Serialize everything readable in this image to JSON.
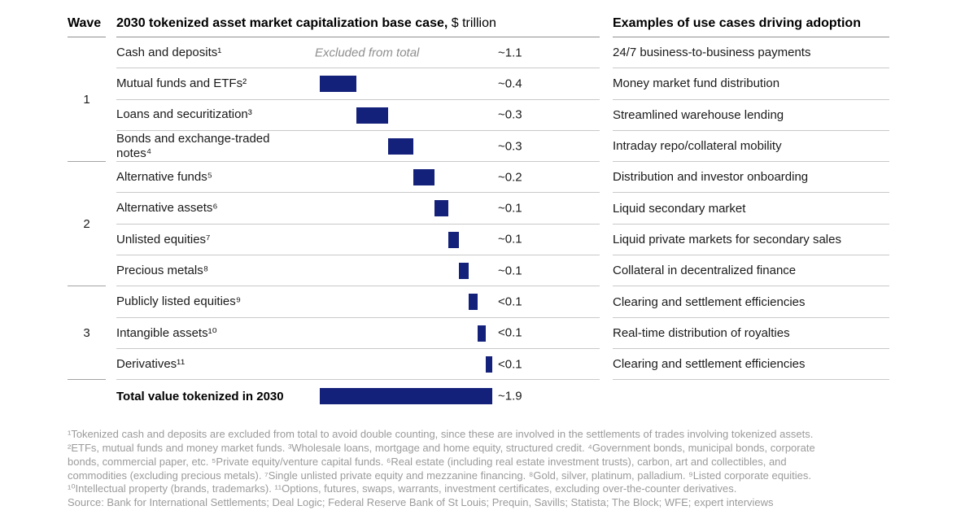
{
  "colors": {
    "bar_navy": "#14217a"
  },
  "wave": {
    "header": "Wave",
    "groups": [
      {
        "number": "1",
        "rows": 4
      },
      {
        "number": "2",
        "rows": 4
      },
      {
        "number": "3",
        "rows": 3
      }
    ]
  },
  "main": {
    "title_bold": "2030 tokenized asset market capitalization base case,",
    "title_unit": "$ trillion",
    "excluded_note": "Excluded from total",
    "rows": [
      {
        "label": "Cash and deposits¹",
        "value": "~1.1",
        "bar": null
      },
      {
        "label": "Mutual funds and ETFs²",
        "value": "~0.4",
        "bar": 0.4
      },
      {
        "label": "Loans and securitization³",
        "value": "~0.3",
        "bar": 0.35
      },
      {
        "label": "Bonds and exchange-traded notes⁴",
        "value": "~0.3",
        "bar": 0.28
      },
      {
        "label": "Alternative funds⁵",
        "value": "~0.2",
        "bar": 0.23
      },
      {
        "label": "Alternative assets⁶",
        "value": "~0.1",
        "bar": 0.15
      },
      {
        "label": "Unlisted equities⁷",
        "value": "~0.1",
        "bar": 0.12
      },
      {
        "label": "Precious metals⁸",
        "value": "~0.1",
        "bar": 0.1
      },
      {
        "label": "Publicly listed equities⁹",
        "value": "<0.1",
        "bar": 0.1
      },
      {
        "label": "Intangible assets¹⁰",
        "value": "<0.1",
        "bar": 0.09
      },
      {
        "label": "Derivatives¹¹",
        "value": "<0.1",
        "bar": 0.07
      }
    ],
    "total": {
      "label": "Total value tokenized in 2030",
      "value": "~1.9",
      "bar": 1.89
    }
  },
  "use_cases": {
    "header": "Examples of use cases driving adoption",
    "rows": [
      "24/7 business-to-business payments",
      "Money market fund distribution",
      "Streamlined warehouse lending",
      "Intraday repo/collateral mobility",
      "Distribution and investor onboarding",
      "Liquid secondary market",
      "Liquid private markets for secondary sales",
      "Collateral in decentralized finance",
      "Clearing and settlement efficiencies",
      "Real-time distribution of royalties",
      "Clearing and settlement efficiencies"
    ]
  },
  "footnotes": {
    "lines": [
      "¹Tokenized cash and deposits are excluded from total to avoid double counting, since these are involved in the settlements of trades involving tokenized assets.",
      "²ETFs, mutual funds and money market funds. ³Wholesale loans, mortgage and home equity, structured credit. ⁴Government bonds, municipal bonds, corporate",
      "bonds, commercial paper, etc. ⁵Private equity/venture capital funds. ⁶Real estate (including real estate investment trusts), carbon, art and collectibles, and",
      "commodities (excluding precious metals). ⁷Single unlisted private equity and mezzanine financing. ⁸Gold, silver, platinum, palladium. ⁹Listed corporate equities.",
      "¹⁰Intellectual property (brands, trademarks). ¹¹Options, futures, swaps, warrants, investment certificates, excluding over-the-counter derivatives."
    ],
    "source": "Source: Bank for International Settlements; Deal Logic; Federal Reserve Bank of St Louis; Prequin, Savills; Statista; The Block; WFE; expert interviews"
  },
  "chart_data": {
    "type": "bar",
    "variant": "horizontal-waterfall-table",
    "title": "2030 tokenized asset market capitalization base case, $ trillion",
    "unit": "$ trillion",
    "categories": [
      "Cash and deposits",
      "Mutual funds and ETFs",
      "Loans and securitization",
      "Bonds and exchange-traded notes",
      "Alternative funds",
      "Alternative assets",
      "Unlisted equities",
      "Precious metals",
      "Publicly listed equities",
      "Intangible assets",
      "Derivatives"
    ],
    "display_values": [
      "~1.1",
      "~0.4",
      "~0.3",
      "~0.3",
      "~0.2",
      "~0.1",
      "~0.1",
      "~0.1",
      "<0.1",
      "<0.1",
      "<0.1"
    ],
    "values_trillion_est": [
      1.1,
      0.4,
      0.35,
      0.28,
      0.23,
      0.15,
      0.12,
      0.1,
      0.1,
      0.09,
      0.07
    ],
    "excluded_from_total": [
      "Cash and deposits"
    ],
    "total": {
      "label": "Total value tokenized in 2030",
      "display_value": "~1.9",
      "value_est": 1.89
    },
    "waves": {
      "1": [
        "Cash and deposits",
        "Mutual funds and ETFs",
        "Loans and securitization",
        "Bonds and exchange-traded notes"
      ],
      "2": [
        "Alternative funds",
        "Alternative assets",
        "Unlisted equities",
        "Precious metals"
      ],
      "3": [
        "Publicly listed equities",
        "Intangible assets",
        "Derivatives"
      ]
    },
    "use_cases_by_category": [
      "24/7 business-to-business payments",
      "Money market fund distribution",
      "Streamlined warehouse lending",
      "Intraday repo/collateral mobility",
      "Distribution and investor onboarding",
      "Liquid secondary market",
      "Liquid private markets for secondary sales",
      "Collateral in decentralized finance",
      "Clearing and settlement efficiencies",
      "Real-time distribution of royalties",
      "Clearing and settlement efficiencies"
    ],
    "legend_position": "none",
    "grid": "row-dividers-only"
  }
}
